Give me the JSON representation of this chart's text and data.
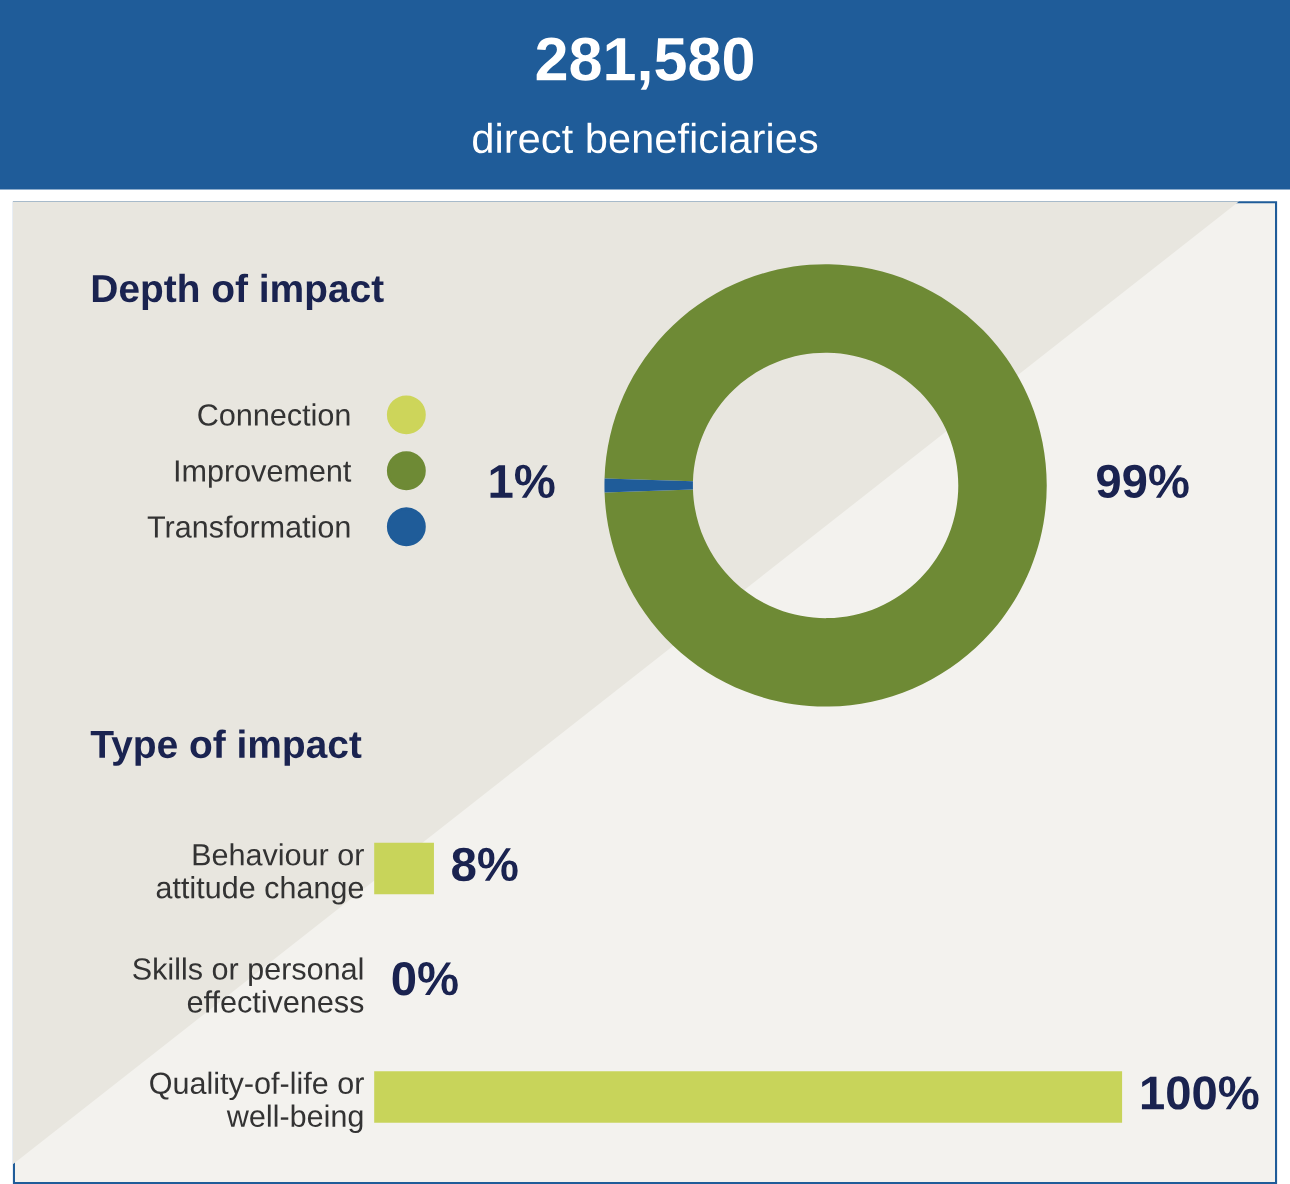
{
  "chart_data": [
    {
      "type": "other",
      "title": "281,580",
      "subtitle": "direct beneficiaries",
      "color": "#1f5c99"
    },
    {
      "type": "donut",
      "title": "Depth of impact",
      "categories": [
        "Connection",
        "Improvement",
        "Transformation"
      ],
      "values": [
        0,
        99,
        1
      ],
      "colors": [
        "#cdd55a",
        "#6e8a35",
        "#1f5c99"
      ],
      "value_labels": [
        null,
        "99%",
        "1%"
      ],
      "legend": "left"
    },
    {
      "type": "bar",
      "orientation": "horizontal",
      "title": "Type of impact",
      "categories": [
        "Behaviour or\nattitude change",
        "Skills or personal\neffectiveness",
        "Quality-of-life or\nwell-being"
      ],
      "values": [
        8,
        0,
        100
      ],
      "color": "#c8d45a",
      "value_labels": [
        "8%",
        "0%",
        "100%"
      ]
    }
  ]
}
